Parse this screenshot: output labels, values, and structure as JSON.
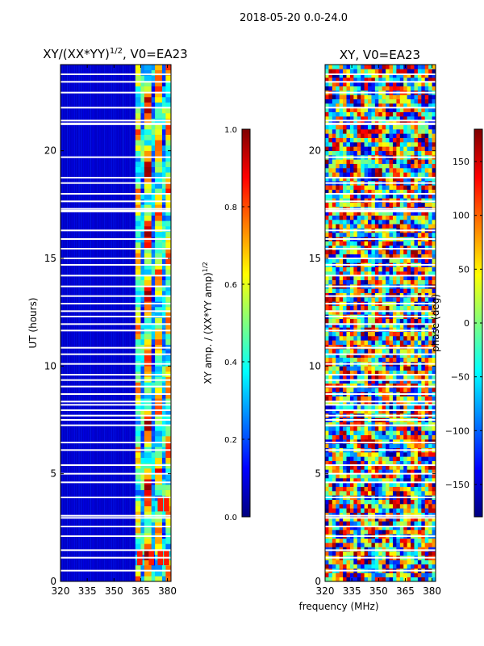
{
  "figure": {
    "suptitle": "2018-05-20 0.0-24.0",
    "xlabel": "frequency (MHz)"
  },
  "colors": {
    "gap_stripe": "#ffffff",
    "frame": "#000000",
    "jet": [
      "#00007f",
      "#0000ff",
      "#007fff",
      "#00ffff",
      "#7fff7f",
      "#ffff00",
      "#ff7f00",
      "#ff0000",
      "#7f0000"
    ]
  },
  "chart_data": [
    {
      "type": "heatmap",
      "title": "XY/(XX*YY)",
      "title_exp": "1/2",
      "title_suffix": ", V0=EA23",
      "xlabel": "",
      "ylabel": "UT (hours)",
      "xlim": [
        320,
        382
      ],
      "ylim": [
        0,
        24
      ],
      "xticks": [
        320,
        335,
        350,
        365,
        380
      ],
      "yticks": [
        0,
        5,
        10,
        15,
        20
      ],
      "description_values": "normalized XY amplitude; low (~0.05) below 362 MHz, patchy 0.3-0.9 between 362 and 382 MHz",
      "bands": [
        {
          "f0": 362,
          "f1": 365,
          "v": 0.55
        },
        {
          "f0": 365,
          "f1": 367,
          "v": 0.35
        },
        {
          "f0": 367,
          "f1": 371,
          "v": 0.7
        },
        {
          "f0": 371,
          "f1": 373,
          "v": 0.3
        },
        {
          "f0": 373,
          "f1": 377,
          "v": 0.6
        },
        {
          "f0": 377,
          "f1": 379,
          "v": 0.35
        },
        {
          "f0": 379,
          "f1": 382,
          "v": 0.6
        }
      ],
      "gaps_ut": [
        0.5,
        1.1,
        1.45,
        2.1,
        2.55,
        2.95,
        3.05,
        3.9,
        4.6,
        5.0,
        5.4,
        6.1,
        6.45,
        7.25,
        7.5,
        7.7,
        7.95,
        8.2,
        8.35,
        8.7,
        9.05,
        9.35,
        9.6,
        10.1,
        10.55,
        10.85,
        11.65,
        11.95,
        12.3,
        12.55,
        12.9,
        13.25,
        13.7,
        14.2,
        14.7,
        15.0,
        15.45,
        15.9,
        16.3,
        17.2,
        17.3,
        17.65,
        18.0,
        18.5,
        18.75,
        19.7,
        21.25,
        21.4,
        22.0,
        22.7,
        23.2,
        23.55
      ],
      "colorbar": {
        "label": "XY amp. / (XX*YY amp)",
        "label_exp": "1/2",
        "vmin": 0.0,
        "vmax": 1.0,
        "ticks": [
          0.0,
          0.2,
          0.4,
          0.6,
          0.8,
          1.0
        ],
        "tick_labels": [
          "0.0",
          "0.2",
          "0.4",
          "0.6",
          "0.8",
          "1.0"
        ]
      }
    },
    {
      "type": "heatmap",
      "title": "XY, V0=EA23",
      "xlabel": "",
      "ylabel": "",
      "xlim": [
        320,
        382
      ],
      "ylim": [
        0,
        24
      ],
      "xticks": [
        320,
        335,
        350,
        365,
        380
      ],
      "yticks": [
        0,
        5,
        10,
        15,
        20
      ],
      "description_values": "XY phase in degrees, noisy across all frequencies, range -180 to 180",
      "gaps_ut": [
        0.5,
        1.1,
        1.45,
        2.1,
        2.55,
        2.95,
        3.05,
        3.9,
        4.6,
        5.0,
        5.4,
        6.1,
        6.45,
        7.25,
        7.5,
        7.7,
        7.95,
        8.2,
        8.35,
        8.7,
        9.05,
        9.35,
        9.6,
        10.1,
        10.55,
        10.85,
        11.65,
        11.95,
        12.3,
        12.55,
        12.9,
        13.25,
        13.7,
        14.2,
        14.7,
        15.0,
        15.45,
        15.9,
        16.3,
        17.2,
        17.3,
        17.65,
        18.0,
        18.5,
        18.75,
        19.7,
        21.25,
        21.4,
        22.0,
        22.7,
        23.2,
        23.55
      ],
      "colorbar": {
        "label": "phase (deg)",
        "vmin": -180,
        "vmax": 180,
        "ticks": [
          -150,
          -100,
          -50,
          0,
          50,
          100,
          150
        ],
        "tick_labels": [
          "−150",
          "−100",
          "−50",
          "0",
          "50",
          "100",
          "150"
        ]
      }
    }
  ]
}
